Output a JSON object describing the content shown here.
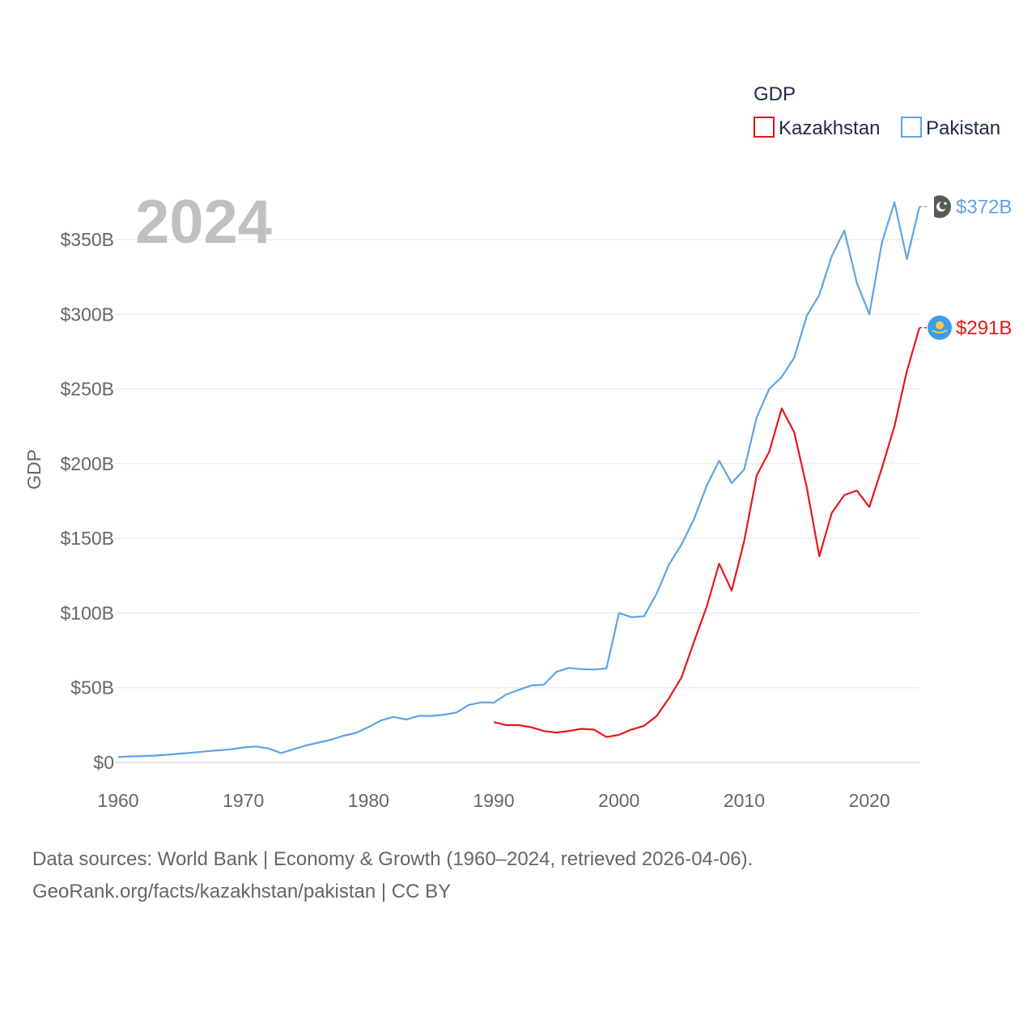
{
  "chart_data": {
    "type": "line",
    "title": "GDP",
    "ylabel": "GDP",
    "xlabel": "",
    "current_year_label": "2024",
    "xlim": [
      1960,
      2024
    ],
    "ylim": [
      0,
      350
    ],
    "x_ticks": [
      1960,
      1970,
      1980,
      1990,
      2000,
      2010,
      2020
    ],
    "x_tick_labels": [
      "1960",
      "1970",
      "1980",
      "1990",
      "2000",
      "2010",
      "2020"
    ],
    "y_ticks": [
      0,
      50,
      100,
      150,
      200,
      250,
      300,
      350
    ],
    "y_tick_labels": [
      "$0",
      "$50B",
      "$100B",
      "$150B",
      "$200B",
      "$250B",
      "$300B",
      "$350B"
    ],
    "legend_title": "GDP",
    "legend_position": "top-right",
    "units": "billions USD",
    "series": [
      {
        "name": "Kazakhstan",
        "color": "#e8161b",
        "end_label": "$291B",
        "flag_icon": "kazakhstan-flag-icon",
        "x": [
          1990,
          1991,
          1992,
          1993,
          1994,
          1995,
          1996,
          1997,
          1998,
          1999,
          2000,
          2001,
          2002,
          2003,
          2004,
          2005,
          2006,
          2007,
          2008,
          2009,
          2010,
          2011,
          2012,
          2013,
          2014,
          2015,
          2016,
          2017,
          2018,
          2019,
          2020,
          2021,
          2022,
          2023,
          2024
        ],
        "values": [
          27,
          25,
          25,
          23.5,
          21,
          20,
          21,
          22.5,
          22,
          17,
          18.5,
          22,
          24.5,
          31,
          43,
          57,
          81,
          104,
          133,
          115,
          148,
          192,
          208,
          237,
          221,
          184,
          138,
          167,
          179,
          182,
          171,
          197,
          225,
          262,
          291
        ]
      },
      {
        "name": "Pakistan",
        "color": "#5fa3e6",
        "end_label": "$372B",
        "flag_icon": "pakistan-flag-icon",
        "x": [
          1960,
          1961,
          1962,
          1963,
          1964,
          1965,
          1966,
          1967,
          1968,
          1969,
          1970,
          1971,
          1972,
          1973,
          1974,
          1975,
          1976,
          1977,
          1978,
          1979,
          1980,
          1981,
          1982,
          1983,
          1984,
          1985,
          1986,
          1987,
          1988,
          1989,
          1990,
          1991,
          1992,
          1993,
          1994,
          1995,
          1996,
          1997,
          1998,
          1999,
          2000,
          2001,
          2002,
          2003,
          2004,
          2005,
          2006,
          2007,
          2008,
          2009,
          2010,
          2011,
          2012,
          2013,
          2014,
          2015,
          2016,
          2017,
          2018,
          2019,
          2020,
          2021,
          2022,
          2023,
          2024
        ],
        "values": [
          3.7,
          4,
          4.3,
          4.6,
          5.2,
          5.9,
          6.6,
          7.4,
          8.1,
          8.8,
          10,
          10.7,
          9.4,
          6.3,
          8.8,
          11.3,
          13.3,
          15.2,
          17.9,
          19.8,
          23.7,
          28.1,
          30.5,
          28.7,
          31.2,
          31.1,
          31.9,
          33.4,
          38.5,
          40.2,
          40,
          45.5,
          48.6,
          51.5,
          52,
          60.6,
          63.3,
          62.4,
          62.2,
          62.9,
          100,
          97.2,
          97.9,
          112.9,
          132.5,
          146,
          163,
          185,
          202,
          187,
          196,
          231,
          250,
          258,
          271,
          299,
          313,
          339,
          356,
          321,
          300,
          348,
          375,
          337,
          372
        ]
      }
    ]
  },
  "footer": {
    "line1": "Data sources: World Bank | Economy & Growth (1960–2024, retrieved 2026-04-06).",
    "line2": "GeoRank.org/facts/kazakhstan/pakistan | CC BY"
  }
}
